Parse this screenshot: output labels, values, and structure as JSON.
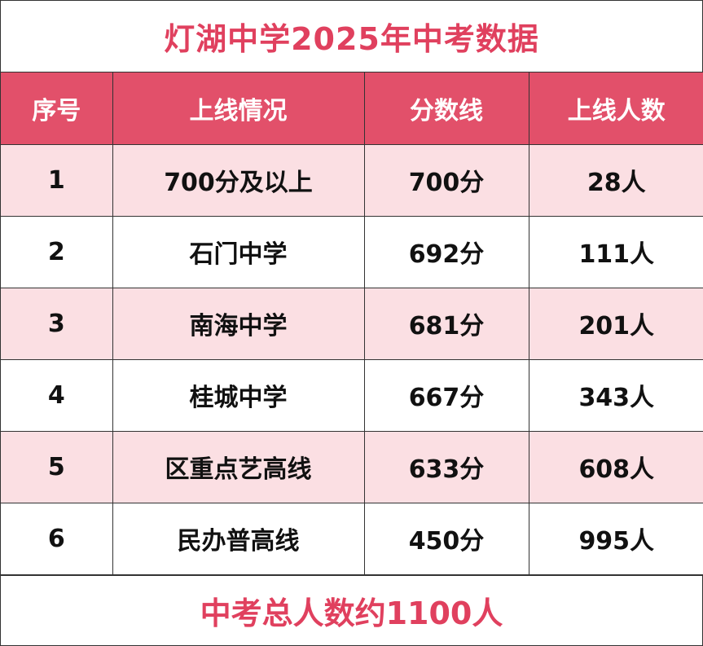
{
  "title": "灯湖中学2025年中考数据",
  "table": {
    "headers": [
      "序号",
      "上线情况",
      "分数线",
      "上线人数"
    ],
    "rows": [
      [
        "1",
        "700分及以上",
        "700分",
        "28人"
      ],
      [
        "2",
        "石门中学",
        "692分",
        "111人"
      ],
      [
        "3",
        "南海中学",
        "681分",
        "201人"
      ],
      [
        "4",
        "桂城中学",
        "667分",
        "343人"
      ],
      [
        "5",
        "区重点艺高线",
        "633分",
        "608人"
      ],
      [
        "6",
        "民办普高线",
        "450分",
        "995人"
      ]
    ]
  },
  "footer": "中考总人数约1100人",
  "colors": {
    "accent": "#e0405e",
    "header_bg": "#e2506a",
    "stripe_bg": "#fbdfe3"
  }
}
